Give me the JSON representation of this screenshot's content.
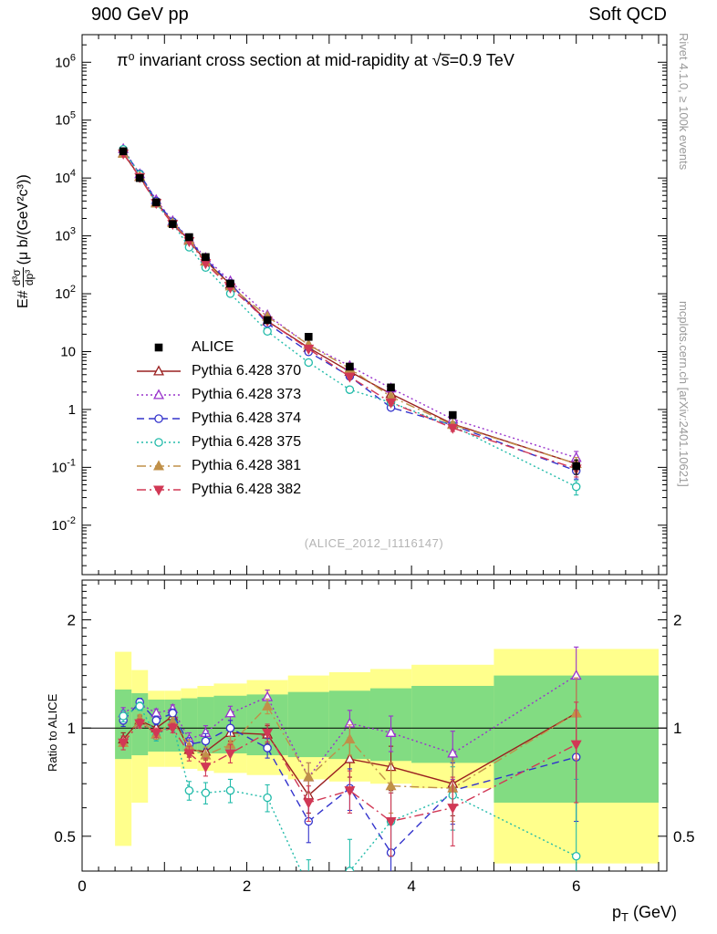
{
  "header": {
    "left": "900 GeV pp",
    "right": "Soft QCD"
  },
  "titles": {
    "main": "π⁰ invariant cross section at mid-rapidity at √s̅=0.9 TeV",
    "watermark": "(ALICE_2012_I1116147)",
    "ratio_ylabel": "Ratio to ALICE"
  },
  "ylabel": {
    "prefix": "E#",
    "num": "d³σ",
    "den": "dp³",
    "suffix": " (μ b/(GeV²c³))"
  },
  "xlabel": {
    "base": "p",
    "sub": "T",
    "unit": " (GeV)"
  },
  "side": {
    "top": "Rivet 4.1.0, ≥ 100k events",
    "bottom": "mcplots.cern.ch [arXiv:2401.10621]"
  },
  "chart_data": {
    "type": "line",
    "title": "π⁰ invariant cross section at mid-rapidity at √s=0.9 TeV",
    "xlabel": "pT (GeV)",
    "ylabel_main": "E d³σ/dp³ (μ b/(GeV²c³))",
    "ylabel_ratio": "Ratio to ALICE",
    "scales": {
      "y_main": "log",
      "y_ratio": "log",
      "x": "linear"
    },
    "pt": [
      0.5,
      0.7,
      0.9,
      1.1,
      1.3,
      1.5,
      1.8,
      2.25,
      2.75,
      3.25,
      3.75,
      4.5,
      6.0
    ],
    "alice": {
      "label": "ALICE",
      "color": "#000000",
      "marker": "square",
      "values": [
        29000,
        10000,
        3800,
        1600,
        950,
        430,
        150,
        35,
        18,
        5.5,
        2.4,
        0.8,
        0.105
      ]
    },
    "ratio_err": [
      0.04,
      0.03,
      0.03,
      0.03,
      0.04,
      0.045,
      0.05,
      0.055,
      0.07,
      0.09,
      0.11,
      0.13,
      0.28
    ],
    "series": [
      {
        "name": "Pythia 6.428 370",
        "color": "#9a2020",
        "line": "solid",
        "marker": "triangle-up",
        "filled": false,
        "ratio": [
          0.93,
          1.05,
          1.0,
          1.08,
          0.87,
          0.86,
          0.97,
          0.96,
          0.65,
          0.82,
          0.78,
          0.7,
          1.1
        ]
      },
      {
        "name": "Pythia 6.428 373",
        "color": "#9933cc",
        "line": "dotted",
        "marker": "triangle-up",
        "filled": false,
        "ratio": [
          1.1,
          1.17,
          1.1,
          1.13,
          0.93,
          0.97,
          1.1,
          1.22,
          0.73,
          1.03,
          0.97,
          0.85,
          1.4
        ]
      },
      {
        "name": "Pythia 6.428 374",
        "color": "#3333cc",
        "line": "dashed",
        "marker": "circle",
        "filled": false,
        "ratio": [
          1.05,
          1.18,
          1.05,
          1.1,
          0.9,
          0.92,
          1.0,
          0.88,
          0.55,
          0.68,
          0.45,
          0.67,
          0.83
        ]
      },
      {
        "name": "Pythia 6.428 375",
        "color": "#22bbaa",
        "line": "dotted",
        "marker": "circle",
        "filled": false,
        "ratio": [
          1.08,
          1.15,
          0.95,
          1.03,
          0.67,
          0.66,
          0.67,
          0.64,
          0.36,
          0.4,
          0.55,
          0.65,
          0.44
        ]
      },
      {
        "name": "Pythia 6.428 381",
        "color": "#c09048",
        "line": "dashdot",
        "marker": "triangle-up",
        "filled": true,
        "ratio": [
          0.91,
          1.06,
          0.96,
          1.04,
          0.89,
          0.84,
          0.9,
          1.15,
          0.73,
          0.93,
          0.69,
          0.68,
          1.1
        ]
      },
      {
        "name": "Pythia 6.428 382",
        "color": "#d13855",
        "line": "dashdot",
        "marker": "triangle-down",
        "filled": true,
        "ratio": [
          0.91,
          1.03,
          0.97,
          1.0,
          0.85,
          0.78,
          0.85,
          0.97,
          0.62,
          0.67,
          0.55,
          0.6,
          0.9
        ]
      }
    ],
    "bands": {
      "yellow": "#ffff8c",
      "green": "#82dc82",
      "edges": [
        0.4,
        0.6,
        0.8,
        1.0,
        1.2,
        1.4,
        1.6,
        2.0,
        2.5,
        3.0,
        3.5,
        4.0,
        5.0,
        7.0
      ],
      "yellow_lo": [
        0.47,
        0.62,
        0.78,
        0.78,
        0.77,
        0.76,
        0.75,
        0.74,
        0.72,
        0.71,
        0.7,
        0.68,
        0.42
      ],
      "yellow_hi": [
        1.63,
        1.45,
        1.27,
        1.27,
        1.29,
        1.31,
        1.33,
        1.36,
        1.4,
        1.43,
        1.46,
        1.5,
        1.66
      ],
      "green_lo": [
        0.82,
        0.84,
        0.86,
        0.86,
        0.86,
        0.85,
        0.85,
        0.84,
        0.83,
        0.82,
        0.81,
        0.8,
        0.62
      ],
      "green_hi": [
        1.28,
        1.25,
        1.2,
        1.2,
        1.21,
        1.22,
        1.23,
        1.24,
        1.26,
        1.27,
        1.29,
        1.31,
        1.4
      ]
    },
    "axes": {
      "x": {
        "min": 0,
        "max": 7.1,
        "ticks": [
          0,
          2,
          4,
          6
        ]
      },
      "y_main": {
        "min": 0.0014,
        "max": 3000000,
        "exps": [
          -2,
          -1,
          0,
          1,
          2,
          3,
          4,
          5,
          6
        ]
      },
      "y_ratio": {
        "min": 0.4,
        "max": 2.58,
        "ticks": [
          0.5,
          1,
          2
        ],
        "minor": [
          0.6,
          0.7,
          0.8,
          0.9,
          1.1,
          1.2,
          1.3,
          1.4,
          1.5,
          1.6,
          1.7,
          1.8,
          1.9,
          2.1,
          2.2,
          2.3,
          2.4,
          2.5
        ]
      }
    }
  }
}
